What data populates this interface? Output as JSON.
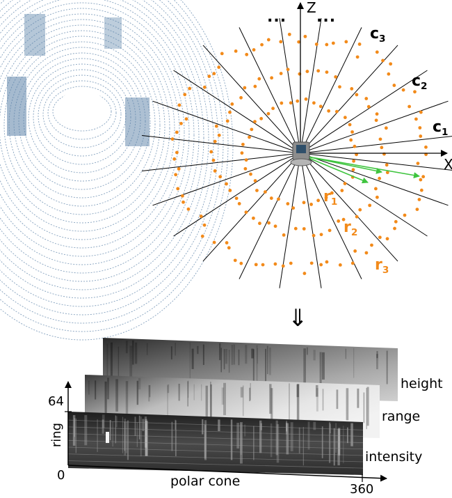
{
  "sensor_diagram": {
    "axis_z": "Z",
    "axis_x": "X",
    "ellipsis_left": "...",
    "ellipsis_right": "...",
    "cones": [
      {
        "base": "c",
        "sub": "1"
      },
      {
        "base": "c",
        "sub": "2"
      },
      {
        "base": "c",
        "sub": "3"
      }
    ],
    "rings": [
      {
        "base": "r",
        "sub": "1"
      },
      {
        "base": "r",
        "sub": "2"
      },
      {
        "base": "r",
        "sub": "3"
      }
    ]
  },
  "arrow_symbol": "⇓",
  "projection": {
    "layer_labels": [
      "height",
      "range",
      "intensity"
    ],
    "y_axis_label": "ring",
    "y_axis_max": "64",
    "origin": "0",
    "x_axis_label": "polar cone",
    "x_axis_max": "360"
  },
  "colors": {
    "point_orange": "#f28a1a",
    "ray_green": "#3ec43e",
    "point_cloud_blue": "#5b82a8"
  }
}
